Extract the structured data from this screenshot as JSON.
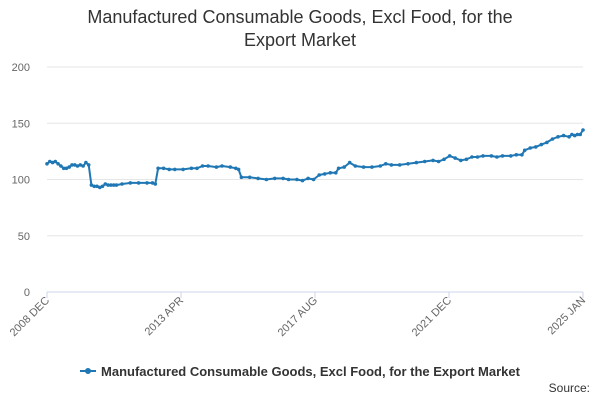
{
  "chart_data": {
    "type": "line",
    "title": "Manufactured Consumable Goods, Excl Food, for the Export Market",
    "xlabel": "",
    "ylabel": "",
    "ylim": [
      0,
      200
    ],
    "yticks": [
      0,
      50,
      100,
      150,
      200
    ],
    "x_tick_labels": [
      "2008 DEC",
      "2013 APR",
      "2017 AUG",
      "2021 DEC",
      "2025 JAN"
    ],
    "grid": true,
    "legend_position": "bottom",
    "line_color": "#1f77b4",
    "series": [
      {
        "name": "Manufactured Consumable Goods, Excl Food, for the Export Market",
        "points": [
          {
            "x": "2008-12",
            "y": 114
          },
          {
            "x": "2009-01",
            "y": 116
          },
          {
            "x": "2009-02",
            "y": 115
          },
          {
            "x": "2009-03",
            "y": 116
          },
          {
            "x": "2009-04",
            "y": 114
          },
          {
            "x": "2009-05",
            "y": 112
          },
          {
            "x": "2009-06",
            "y": 110
          },
          {
            "x": "2009-07",
            "y": 110
          },
          {
            "x": "2009-08",
            "y": 111
          },
          {
            "x": "2009-09",
            "y": 113
          },
          {
            "x": "2009-10",
            "y": 113
          },
          {
            "x": "2009-11",
            "y": 112
          },
          {
            "x": "2009-12",
            "y": 113
          },
          {
            "x": "2010-01",
            "y": 112
          },
          {
            "x": "2010-02",
            "y": 115
          },
          {
            "x": "2010-03",
            "y": 113
          },
          {
            "x": "2010-04",
            "y": 95
          },
          {
            "x": "2010-05",
            "y": 94
          },
          {
            "x": "2010-06",
            "y": 94
          },
          {
            "x": "2010-07",
            "y": 93
          },
          {
            "x": "2010-08",
            "y": 94
          },
          {
            "x": "2010-09",
            "y": 96
          },
          {
            "x": "2010-10",
            "y": 95
          },
          {
            "x": "2010-11",
            "y": 95
          },
          {
            "x": "2010-12",
            "y": 95
          },
          {
            "x": "2011-01",
            "y": 95
          },
          {
            "x": "2011-03",
            "y": 96
          },
          {
            "x": "2011-06",
            "y": 97
          },
          {
            "x": "2011-09",
            "y": 97
          },
          {
            "x": "2011-12",
            "y": 97
          },
          {
            "x": "2012-02",
            "y": 97
          },
          {
            "x": "2012-03",
            "y": 96
          },
          {
            "x": "2012-04",
            "y": 110
          },
          {
            "x": "2012-06",
            "y": 110
          },
          {
            "x": "2012-08",
            "y": 109
          },
          {
            "x": "2012-10",
            "y": 109
          },
          {
            "x": "2013-01",
            "y": 109
          },
          {
            "x": "2013-04",
            "y": 110
          },
          {
            "x": "2013-06",
            "y": 110
          },
          {
            "x": "2013-08",
            "y": 112
          },
          {
            "x": "2013-10",
            "y": 112
          },
          {
            "x": "2014-01",
            "y": 111
          },
          {
            "x": "2014-03",
            "y": 112
          },
          {
            "x": "2014-06",
            "y": 111
          },
          {
            "x": "2014-08",
            "y": 110
          },
          {
            "x": "2014-09",
            "y": 109
          },
          {
            "x": "2014-10",
            "y": 102
          },
          {
            "x": "2015-01",
            "y": 102
          },
          {
            "x": "2015-04",
            "y": 101
          },
          {
            "x": "2015-07",
            "y": 100
          },
          {
            "x": "2015-10",
            "y": 101
          },
          {
            "x": "2016-01",
            "y": 101
          },
          {
            "x": "2016-03",
            "y": 100
          },
          {
            "x": "2016-06",
            "y": 100
          },
          {
            "x": "2016-08",
            "y": 99
          },
          {
            "x": "2016-10",
            "y": 101
          },
          {
            "x": "2016-12",
            "y": 100
          },
          {
            "x": "2017-02",
            "y": 104
          },
          {
            "x": "2017-04",
            "y": 105
          },
          {
            "x": "2017-06",
            "y": 106
          },
          {
            "x": "2017-08",
            "y": 106
          },
          {
            "x": "2017-09",
            "y": 110
          },
          {
            "x": "2017-11",
            "y": 111
          },
          {
            "x": "2018-01",
            "y": 115
          },
          {
            "x": "2018-03",
            "y": 112
          },
          {
            "x": "2018-06",
            "y": 111
          },
          {
            "x": "2018-09",
            "y": 111
          },
          {
            "x": "2018-12",
            "y": 112
          },
          {
            "x": "2019-02",
            "y": 114
          },
          {
            "x": "2019-04",
            "y": 113
          },
          {
            "x": "2019-07",
            "y": 113
          },
          {
            "x": "2019-10",
            "y": 114
          },
          {
            "x": "2020-01",
            "y": 115
          },
          {
            "x": "2020-04",
            "y": 116
          },
          {
            "x": "2020-07",
            "y": 117
          },
          {
            "x": "2020-09",
            "y": 116
          },
          {
            "x": "2020-11",
            "y": 118
          },
          {
            "x": "2021-01",
            "y": 121
          },
          {
            "x": "2021-03",
            "y": 119
          },
          {
            "x": "2021-05",
            "y": 117
          },
          {
            "x": "2021-07",
            "y": 118
          },
          {
            "x": "2021-09",
            "y": 120
          },
          {
            "x": "2021-11",
            "y": 120
          },
          {
            "x": "2022-01",
            "y": 121
          },
          {
            "x": "2022-04",
            "y": 121
          },
          {
            "x": "2022-06",
            "y": 120
          },
          {
            "x": "2022-08",
            "y": 121
          },
          {
            "x": "2022-11",
            "y": 121
          },
          {
            "x": "2023-01",
            "y": 122
          },
          {
            "x": "2023-03",
            "y": 122
          },
          {
            "x": "2023-04",
            "y": 126
          },
          {
            "x": "2023-06",
            "y": 128
          },
          {
            "x": "2023-08",
            "y": 129
          },
          {
            "x": "2023-10",
            "y": 131
          },
          {
            "x": "2023-12",
            "y": 133
          },
          {
            "x": "2024-02",
            "y": 136
          },
          {
            "x": "2024-04",
            "y": 138
          },
          {
            "x": "2024-06",
            "y": 139
          },
          {
            "x": "2024-08",
            "y": 138
          },
          {
            "x": "2024-09",
            "y": 140
          },
          {
            "x": "2024-10",
            "y": 139
          },
          {
            "x": "2024-11",
            "y": 140
          },
          {
            "x": "2024-12",
            "y": 140
          },
          {
            "x": "2025-01",
            "y": 144
          }
        ]
      }
    ]
  },
  "source_label": "Source:"
}
